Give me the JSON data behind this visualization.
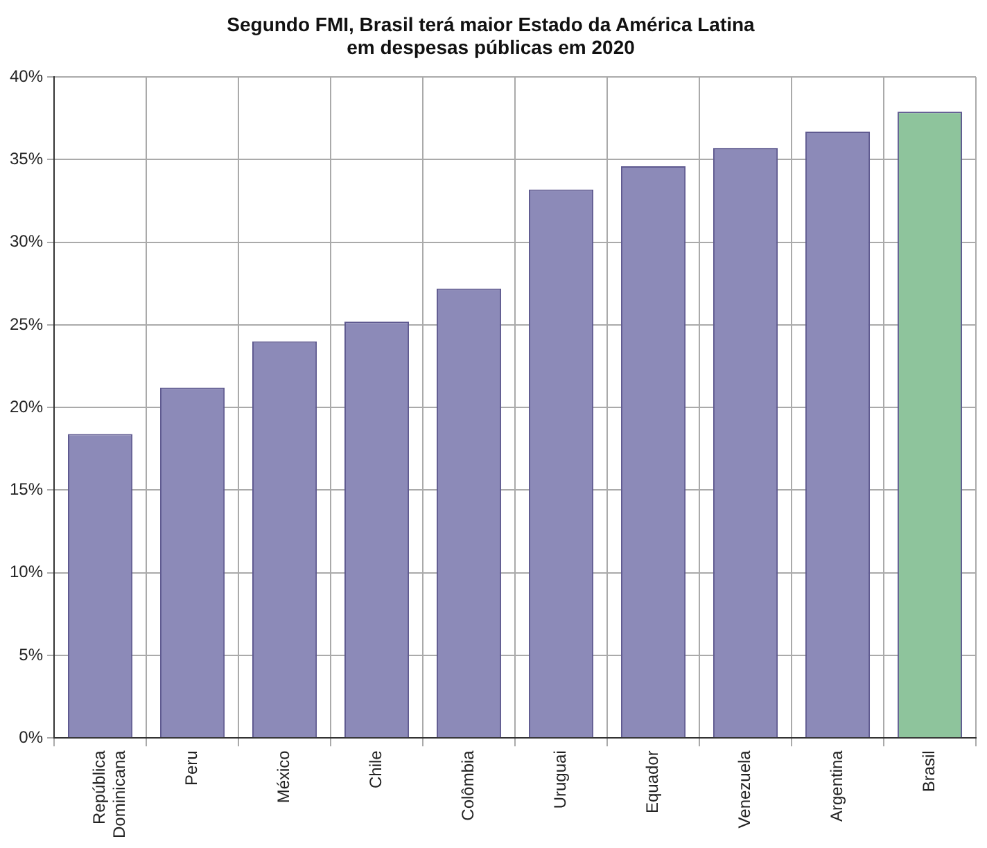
{
  "chart_data": {
    "type": "bar",
    "title": "Segundo FMI, Brasil terá maior Estado da América Latina\nem despesas públicas em 2020",
    "categories": [
      "República Dominicana",
      "Peru",
      "México",
      "Chile",
      "Colômbia",
      "Uruguai",
      "Equador",
      "Venezuela",
      "Argentina",
      "Brasil"
    ],
    "values": [
      18.4,
      21.2,
      24.0,
      25.2,
      27.2,
      33.2,
      34.6,
      35.7,
      36.7,
      37.9
    ],
    "colors": [
      "#8c8ab8",
      "#8c8ab8",
      "#8c8ab8",
      "#8c8ab8",
      "#8c8ab8",
      "#8c8ab8",
      "#8c8ab8",
      "#8c8ab8",
      "#8c8ab8",
      "#8ec49c"
    ],
    "ylim": [
      0,
      40
    ],
    "yticks": [
      {
        "value": 0,
        "label": "0%"
      },
      {
        "value": 5,
        "label": "5%"
      },
      {
        "value": 10,
        "label": "10%"
      },
      {
        "value": 15,
        "label": "15%"
      },
      {
        "value": 20,
        "label": "20%"
      },
      {
        "value": 25,
        "label": "25%"
      },
      {
        "value": 30,
        "label": "30%"
      },
      {
        "value": 35,
        "label": "35%"
      },
      {
        "value": 40,
        "label": "40%"
      }
    ],
    "grid": true
  }
}
